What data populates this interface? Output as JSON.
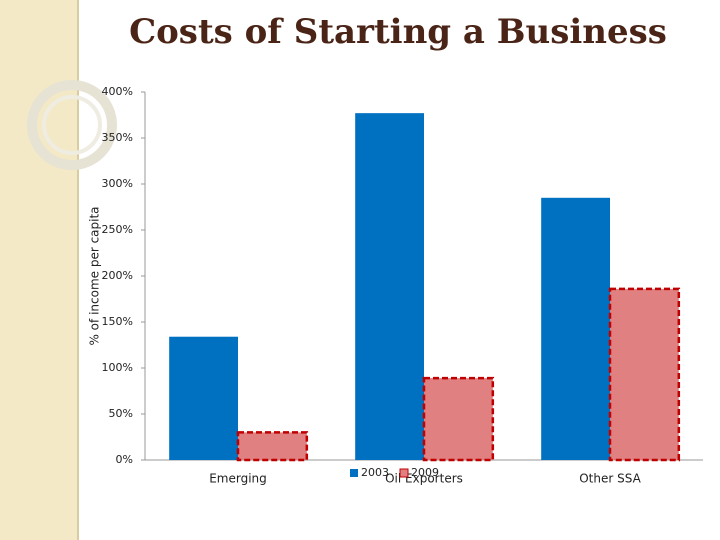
{
  "chart_data": {
    "type": "bar",
    "title": "Costs of Starting a Business",
    "y_label": "% of income per capita",
    "categories": [
      "Emerging",
      "Oil Exporters",
      "Other SSA"
    ],
    "series": [
      {
        "name": "2003",
        "color": "#0070c0",
        "values": [
          134,
          377,
          285
        ]
      },
      {
        "name": "2009",
        "color": "#e08080",
        "border_color": "#c00000",
        "values": [
          30,
          89,
          186
        ]
      }
    ],
    "ylim": [
      0,
      400
    ],
    "yticks": [
      {
        "value": 0,
        "label": "0%"
      },
      {
        "value": 50,
        "label": "50%"
      },
      {
        "value": 100,
        "label": "100%"
      },
      {
        "value": 150,
        "label": "150%"
      },
      {
        "value": 200,
        "label": "200%"
      },
      {
        "value": 250,
        "label": "250%"
      },
      {
        "value": 300,
        "label": "300%"
      },
      {
        "value": 350,
        "label": "350%"
      },
      {
        "value": 400,
        "label": "400%"
      }
    ],
    "grid": false,
    "legend": "bottom"
  }
}
